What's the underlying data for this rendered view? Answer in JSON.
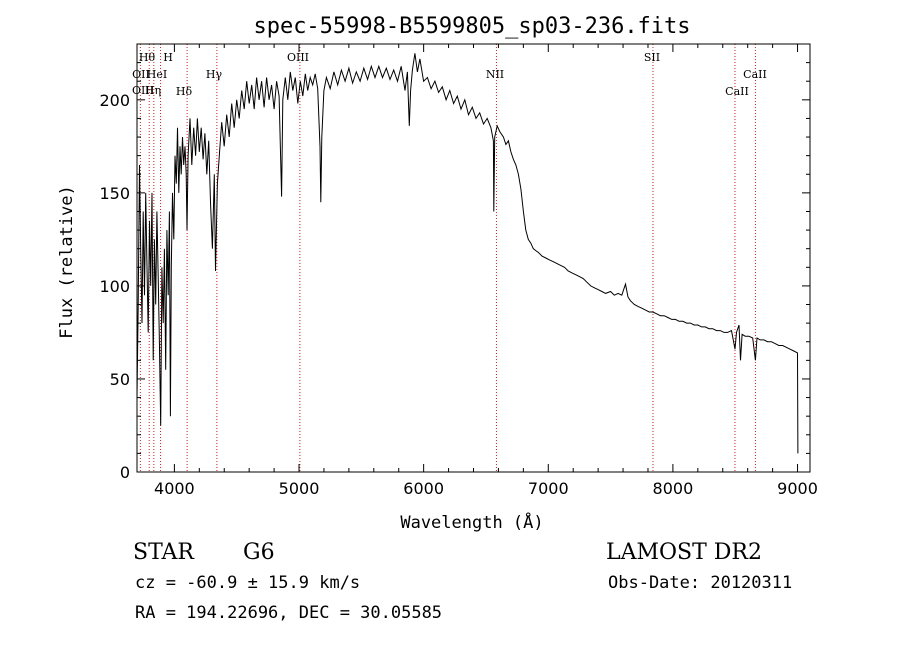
{
  "chart_data": {
    "type": "line",
    "title": "spec-55998-B5599805_sp03-236.fits",
    "xlabel": "Wavelength (Å)",
    "ylabel": "Flux (relative)",
    "xlim": [
      3700,
      9100
    ],
    "ylim": [
      0,
      230
    ],
    "xticks": [
      4000,
      5000,
      6000,
      7000,
      8000,
      9000
    ],
    "yticks": [
      0,
      50,
      100,
      150,
      200
    ],
    "grid": false,
    "line_color": "#000000",
    "marker_line_color": "#cc2222",
    "series": [
      {
        "points": [
          [
            3700,
            40
          ],
          [
            3710,
            90
          ],
          [
            3720,
            165
          ],
          [
            3730,
            120
          ],
          [
            3740,
            80
          ],
          [
            3750,
            140
          ],
          [
            3760,
            95
          ],
          [
            3770,
            150
          ],
          [
            3780,
            110
          ],
          [
            3790,
            75
          ],
          [
            3800,
            135
          ],
          [
            3810,
            100
          ],
          [
            3820,
            150
          ],
          [
            3830,
            60
          ],
          [
            3840,
            125
          ],
          [
            3850,
            90
          ],
          [
            3860,
            140
          ],
          [
            3870,
            105
          ],
          [
            3880,
            70
          ],
          [
            3890,
            25
          ],
          [
            3900,
            110
          ],
          [
            3910,
            80
          ],
          [
            3920,
            120
          ],
          [
            3930,
            55
          ],
          [
            3940,
            130
          ],
          [
            3950,
            95
          ],
          [
            3960,
            140
          ],
          [
            3968,
            30
          ],
          [
            3975,
            110
          ],
          [
            3985,
            150
          ],
          [
            3995,
            125
          ],
          [
            4005,
            170
          ],
          [
            4015,
            155
          ],
          [
            4025,
            185
          ],
          [
            4035,
            150
          ],
          [
            4045,
            175
          ],
          [
            4055,
            160
          ],
          [
            4065,
            180
          ],
          [
            4075,
            165
          ],
          [
            4085,
            175
          ],
          [
            4095,
            160
          ],
          [
            4101,
            130
          ],
          [
            4110,
            170
          ],
          [
            4125,
            190
          ],
          [
            4140,
            165
          ],
          [
            4155,
            185
          ],
          [
            4170,
            170
          ],
          [
            4185,
            190
          ],
          [
            4200,
            172
          ],
          [
            4215,
            185
          ],
          [
            4230,
            168
          ],
          [
            4245,
            182
          ],
          [
            4260,
            160
          ],
          [
            4275,
            178
          ],
          [
            4290,
            145
          ],
          [
            4305,
            120
          ],
          [
            4320,
            160
          ],
          [
            4330,
            108
          ],
          [
            4345,
            155
          ],
          [
            4360,
            170
          ],
          [
            4380,
            188
          ],
          [
            4400,
            175
          ],
          [
            4420,
            192
          ],
          [
            4440,
            180
          ],
          [
            4460,
            198
          ],
          [
            4480,
            185
          ],
          [
            4500,
            200
          ],
          [
            4520,
            190
          ],
          [
            4540,
            205
          ],
          [
            4560,
            195
          ],
          [
            4580,
            210
          ],
          [
            4600,
            198
          ],
          [
            4620,
            208
          ],
          [
            4640,
            195
          ],
          [
            4660,
            212
          ],
          [
            4680,
            200
          ],
          [
            4700,
            210
          ],
          [
            4720,
            196
          ],
          [
            4740,
            212
          ],
          [
            4760,
            200
          ],
          [
            4780,
            208
          ],
          [
            4800,
            195
          ],
          [
            4820,
            210
          ],
          [
            4840,
            202
          ],
          [
            4860,
            148
          ],
          [
            4870,
            200
          ],
          [
            4890,
            212
          ],
          [
            4910,
            200
          ],
          [
            4930,
            215
          ],
          [
            4950,
            205
          ],
          [
            4970,
            212
          ],
          [
            4990,
            198
          ],
          [
            5010,
            210
          ],
          [
            5030,
            202
          ],
          [
            5050,
            214
          ],
          [
            5070,
            205
          ],
          [
            5090,
            212
          ],
          [
            5110,
            208
          ],
          [
            5130,
            214
          ],
          [
            5150,
            206
          ],
          [
            5168,
            175
          ],
          [
            5175,
            145
          ],
          [
            5183,
            180
          ],
          [
            5200,
            205
          ],
          [
            5220,
            212
          ],
          [
            5250,
            206
          ],
          [
            5280,
            215
          ],
          [
            5310,
            208
          ],
          [
            5340,
            216
          ],
          [
            5370,
            210
          ],
          [
            5400,
            217
          ],
          [
            5430,
            209
          ],
          [
            5460,
            215
          ],
          [
            5490,
            210
          ],
          [
            5520,
            217
          ],
          [
            5550,
            211
          ],
          [
            5580,
            218
          ],
          [
            5610,
            212
          ],
          [
            5640,
            218
          ],
          [
            5670,
            212
          ],
          [
            5700,
            217
          ],
          [
            5730,
            211
          ],
          [
            5760,
            216
          ],
          [
            5790,
            210
          ],
          [
            5820,
            218
          ],
          [
            5850,
            205
          ],
          [
            5870,
            215
          ],
          [
            5880,
            195
          ],
          [
            5885,
            186
          ],
          [
            5895,
            205
          ],
          [
            5910,
            216
          ],
          [
            5930,
            225
          ],
          [
            5950,
            215
          ],
          [
            5970,
            222
          ],
          [
            6000,
            210
          ],
          [
            6030,
            212
          ],
          [
            6060,
            206
          ],
          [
            6090,
            210
          ],
          [
            6120,
            204
          ],
          [
            6150,
            207
          ],
          [
            6180,
            200
          ],
          [
            6210,
            205
          ],
          [
            6240,
            198
          ],
          [
            6270,
            202
          ],
          [
            6300,
            195
          ],
          [
            6330,
            200
          ],
          [
            6360,
            192
          ],
          [
            6390,
            196
          ],
          [
            6420,
            190
          ],
          [
            6450,
            193
          ],
          [
            6480,
            187
          ],
          [
            6510,
            190
          ],
          [
            6540,
            185
          ],
          [
            6560,
            178
          ],
          [
            6563,
            140
          ],
          [
            6570,
            180
          ],
          [
            6590,
            186
          ],
          [
            6610,
            183
          ],
          [
            6640,
            180
          ],
          [
            6660,
            176
          ],
          [
            6680,
            178
          ],
          [
            6700,
            172
          ],
          [
            6720,
            168
          ],
          [
            6740,
            165
          ],
          [
            6760,
            160
          ],
          [
            6780,
            152
          ],
          [
            6800,
            140
          ],
          [
            6820,
            130
          ],
          [
            6840,
            125
          ],
          [
            6860,
            123
          ],
          [
            6880,
            120
          ],
          [
            6900,
            119
          ],
          [
            6920,
            118
          ],
          [
            6950,
            116
          ],
          [
            6980,
            115
          ],
          [
            7010,
            114
          ],
          [
            7040,
            113
          ],
          [
            7070,
            112
          ],
          [
            7100,
            111
          ],
          [
            7130,
            110
          ],
          [
            7160,
            108
          ],
          [
            7190,
            107
          ],
          [
            7220,
            106
          ],
          [
            7250,
            105
          ],
          [
            7280,
            104
          ],
          [
            7310,
            102
          ],
          [
            7340,
            100
          ],
          [
            7370,
            99
          ],
          [
            7400,
            98
          ],
          [
            7430,
            97
          ],
          [
            7460,
            96
          ],
          [
            7500,
            97
          ],
          [
            7530,
            95
          ],
          [
            7560,
            96
          ],
          [
            7590,
            95
          ],
          [
            7620,
            101
          ],
          [
            7640,
            94
          ],
          [
            7660,
            92
          ],
          [
            7690,
            90
          ],
          [
            7720,
            89
          ],
          [
            7750,
            88
          ],
          [
            7780,
            87
          ],
          [
            7810,
            86
          ],
          [
            7840,
            86
          ],
          [
            7870,
            85
          ],
          [
            7900,
            84
          ],
          [
            7930,
            84
          ],
          [
            7960,
            83
          ],
          [
            7990,
            82
          ],
          [
            8020,
            82
          ],
          [
            8050,
            81
          ],
          [
            8080,
            81
          ],
          [
            8110,
            80
          ],
          [
            8140,
            80
          ],
          [
            8170,
            79
          ],
          [
            8200,
            79
          ],
          [
            8230,
            78
          ],
          [
            8260,
            78
          ],
          [
            8290,
            77
          ],
          [
            8320,
            77
          ],
          [
            8350,
            76
          ],
          [
            8380,
            76
          ],
          [
            8410,
            75
          ],
          [
            8440,
            75
          ],
          [
            8470,
            76
          ],
          [
            8498,
            66
          ],
          [
            8510,
            75
          ],
          [
            8530,
            79
          ],
          [
            8542,
            60
          ],
          [
            8555,
            74
          ],
          [
            8580,
            73
          ],
          [
            8610,
            73
          ],
          [
            8640,
            72
          ],
          [
            8662,
            60
          ],
          [
            8675,
            72
          ],
          [
            8700,
            71
          ],
          [
            8730,
            71
          ],
          [
            8760,
            70
          ],
          [
            8790,
            70
          ],
          [
            8820,
            69
          ],
          [
            8850,
            68
          ],
          [
            8880,
            68
          ],
          [
            8910,
            67
          ],
          [
            8940,
            66
          ],
          [
            8970,
            65
          ],
          [
            9000,
            64
          ],
          [
            9003,
            10
          ]
        ]
      }
    ],
    "lines": [
      {
        "label": "Hθ",
        "x": 3798
      },
      {
        "label": "H",
        "x": 3889
      },
      {
        "label": "OII",
        "x": 3727
      },
      {
        "label": "HeI",
        "x": 3889
      },
      {
        "label": "OIII",
        "x": 3727
      },
      {
        "label": "Hη",
        "x": 3835
      },
      {
        "label": "Hδ",
        "x": 4102
      },
      {
        "label": "Hγ",
        "x": 4341
      },
      {
        "label": "OIII",
        "x": 5007
      },
      {
        "label": "NII",
        "x": 6584
      },
      {
        "label": "SII",
        "x": 7840
      },
      {
        "label": "CaII",
        "x": 8662
      },
      {
        "label": "CaII",
        "x": 8498
      }
    ]
  },
  "info": {
    "class_label": "STAR",
    "subclass": "G6",
    "cz": "cz = -60.9 ± 15.9 km/s",
    "coords": "RA = 194.22696, DEC =  30.05585",
    "survey": "LAMOST DR2",
    "obs_date": "Obs-Date: 20120311"
  }
}
